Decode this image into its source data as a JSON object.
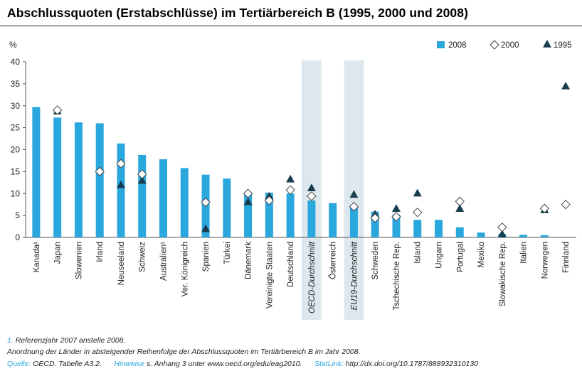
{
  "title": "Abschlussquoten (Erstabschlüsse) im Tertiärbereich B (1995, 2000 und 2008)",
  "colors": {
    "bar": "#2aa7dd",
    "triangle": "#173d4f",
    "diamond_fill": "#ffffff",
    "diamond_stroke": "#444444",
    "highlight": "#dde8ee",
    "axis_text": "#222222",
    "link": "#2aa7dd"
  },
  "chart_data": {
    "type": "bar",
    "ylabel": "%",
    "ylim": [
      0,
      40
    ],
    "yticks": [
      0,
      5,
      10,
      15,
      20,
      25,
      30,
      35,
      40
    ],
    "grid": false,
    "legend_position": "top-right",
    "categories": [
      "Kanada¹",
      "Japan",
      "Slowenien",
      "Irland",
      "Neuseeland",
      "Schweiz",
      "Australien¹",
      "Ver. Königreich",
      "Spanien",
      "Türkei",
      "Dänemark",
      "Vereinigte Staaten",
      "Deutschland",
      "OECD-Durchschnitt",
      "Österreich",
      "EU19-Durchschnitt",
      "Schweden",
      "Tschechische Rep.",
      "Island",
      "Ungarn",
      "Portugal",
      "Mexiko",
      "Slowakische Rep.",
      "Italien",
      "Norwegen",
      "Finnland"
    ],
    "highlighted": [
      "OECD-Durchschnitt",
      "EU19-Durchschnitt"
    ],
    "series": [
      {
        "name": "2008",
        "marker": "bar",
        "values": [
          29.7,
          27.3,
          26.2,
          26.0,
          21.4,
          18.8,
          17.8,
          15.8,
          14.3,
          13.4,
          10.2,
          10.2,
          10.0,
          8.4,
          7.8,
          7.0,
          5.9,
          5.2,
          4.0,
          4.0,
          2.3,
          1.1,
          0.8,
          0.6,
          0.5,
          null
        ]
      },
      {
        "name": "2000",
        "marker": "diamond",
        "values": [
          null,
          29.0,
          null,
          15.0,
          16.8,
          14.4,
          null,
          null,
          8.0,
          null,
          10.0,
          8.4,
          10.8,
          9.4,
          null,
          7.0,
          4.4,
          4.7,
          5.7,
          null,
          8.2,
          null,
          2.3,
          null,
          6.6,
          7.5
        ]
      },
      {
        "name": "1995",
        "marker": "triangle",
        "values": [
          null,
          28.8,
          null,
          null,
          12.0,
          13.0,
          null,
          null,
          2.0,
          null,
          8.1,
          9.4,
          13.3,
          11.3,
          null,
          9.8,
          5.3,
          6.6,
          10.1,
          null,
          6.6,
          null,
          0.8,
          null,
          6.3,
          34.5
        ]
      }
    ]
  },
  "footnotes": {
    "note1_marker": "1.",
    "note1_text": "Referenzjahr 2007 anstelle 2008.",
    "order_note": "Anordnung der Länder in absteigender Reihenfolge der Abschlussquoten im Tertiärbereich B im Jahr 2008.",
    "source_label": "Quelle:",
    "source_text": "OECD. Tabelle A3.2.",
    "hint_label": "Hinweise",
    "hint_text": "s. Anhang 3 unter www.oecd.org/edu/eag2010.",
    "statlink_label": "StatLink:",
    "statlink_text": "http://dx.doi.org/10.1787/888932310130"
  }
}
